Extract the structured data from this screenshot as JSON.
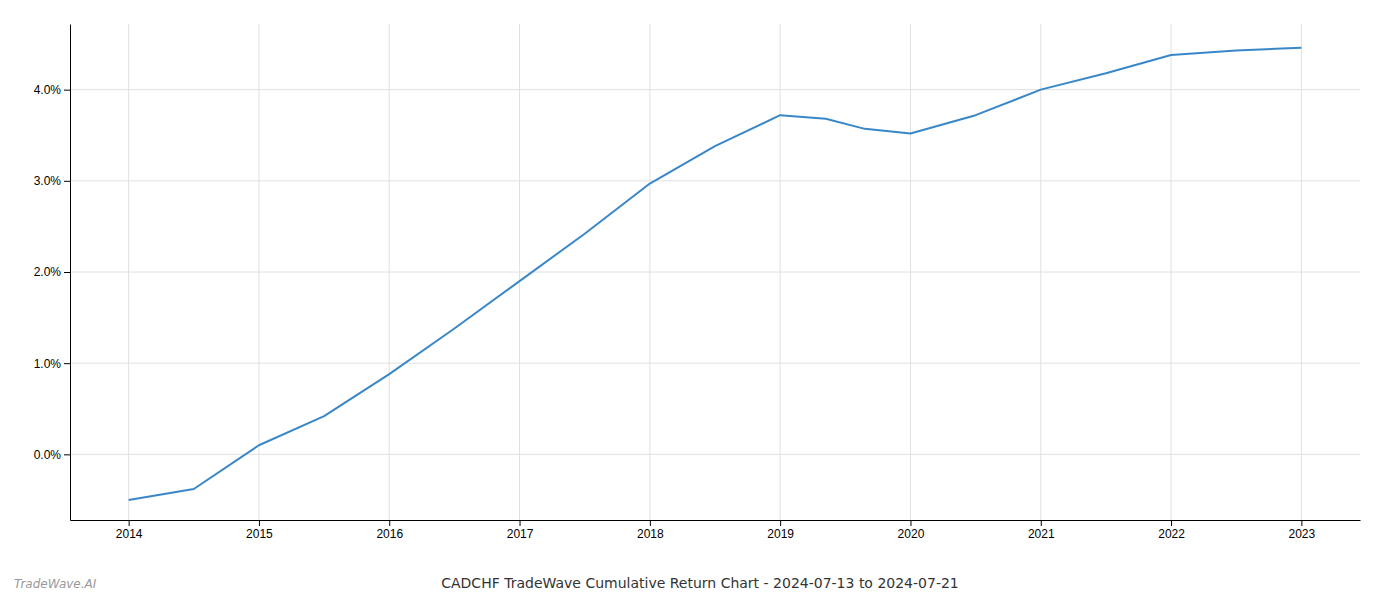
{
  "chart_data": {
    "type": "line",
    "title": "CADCHF TradeWave Cumulative Return Chart - 2024-07-13 to 2024-07-21",
    "annotations": [
      "TradeWave.AI"
    ],
    "x": [
      2014.0,
      2014.5,
      2015.0,
      2015.5,
      2016.0,
      2016.5,
      2017.0,
      2017.5,
      2018.0,
      2018.5,
      2019.0,
      2019.35,
      2019.65,
      2020.0,
      2020.5,
      2021.0,
      2021.5,
      2022.0,
      2022.5,
      2022.85,
      2023.0
    ],
    "values": [
      -0.5,
      -0.38,
      0.1,
      0.42,
      0.88,
      1.38,
      1.9,
      2.42,
      2.97,
      3.38,
      3.72,
      3.68,
      3.57,
      3.52,
      3.72,
      4.0,
      4.18,
      4.38,
      4.43,
      4.45,
      4.46
    ],
    "color": "#3a87c8",
    "xlim": [
      2013.55,
      2023.45
    ],
    "ylim": [
      -0.72,
      4.72
    ],
    "xticks": [
      2014,
      2015,
      2016,
      2017,
      2018,
      2019,
      2020,
      2021,
      2022,
      2023
    ],
    "yticks": [
      {
        "value": 0.0,
        "label": "0.0%"
      },
      {
        "value": 1.0,
        "label": "1.0%"
      },
      {
        "value": 2.0,
        "label": "2.0%"
      },
      {
        "value": 3.0,
        "label": "3.0%"
      },
      {
        "value": 4.0,
        "label": "4.0%"
      }
    ],
    "grid": true
  }
}
